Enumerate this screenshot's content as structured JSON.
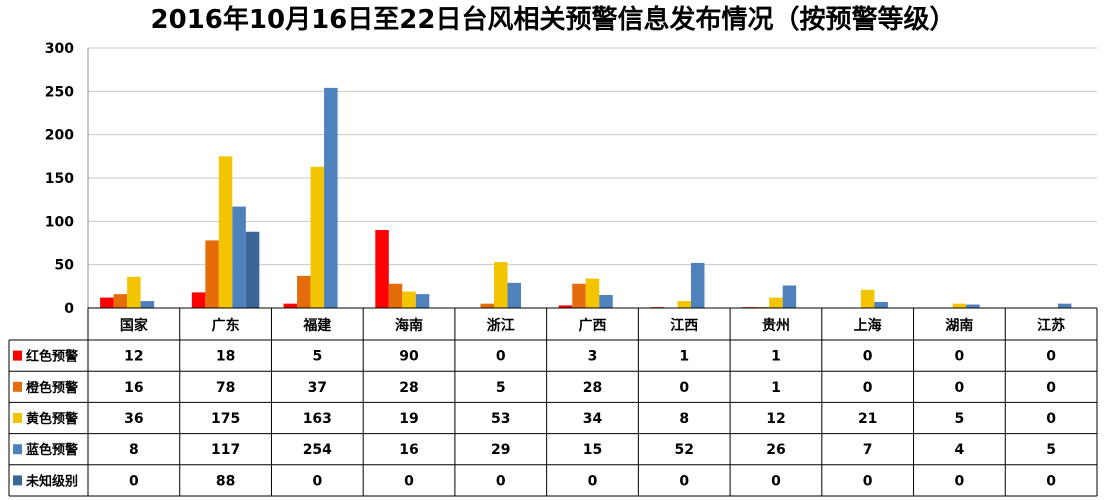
{
  "chart_data": {
    "type": "bar",
    "title": "2016年10月16日至22日台风相关预警信息发布情况（按预警等级）",
    "xlabel": "",
    "ylabel": "",
    "ylim": [
      0,
      300
    ],
    "yticks": [
      0,
      50,
      100,
      150,
      200,
      250,
      300
    ],
    "grid": true,
    "legend": "data-table-left",
    "categories": [
      "国家",
      "广东",
      "福建",
      "海南",
      "浙江",
      "广西",
      "江西",
      "贵州",
      "上海",
      "湖南",
      "江苏"
    ],
    "series": [
      {
        "name": "红色预警",
        "color": "#ff0000",
        "values": [
          12,
          18,
          5,
          90,
          0,
          3,
          1,
          1,
          0,
          0,
          0
        ]
      },
      {
        "name": "橙色预警",
        "color": "#e46c0a",
        "values": [
          16,
          78,
          37,
          28,
          5,
          28,
          0,
          1,
          0,
          0,
          0
        ]
      },
      {
        "name": "黄色预警",
        "color": "#f2c500",
        "values": [
          36,
          175,
          163,
          19,
          53,
          34,
          8,
          12,
          21,
          5,
          0
        ]
      },
      {
        "name": "蓝色预警",
        "color": "#4f81bd",
        "values": [
          8,
          117,
          254,
          16,
          29,
          15,
          52,
          26,
          7,
          4,
          5
        ]
      },
      {
        "name": "未知级别",
        "color": "#3a6597",
        "values": [
          0,
          88,
          0,
          0,
          0,
          0,
          0,
          0,
          0,
          0,
          0
        ]
      }
    ]
  }
}
